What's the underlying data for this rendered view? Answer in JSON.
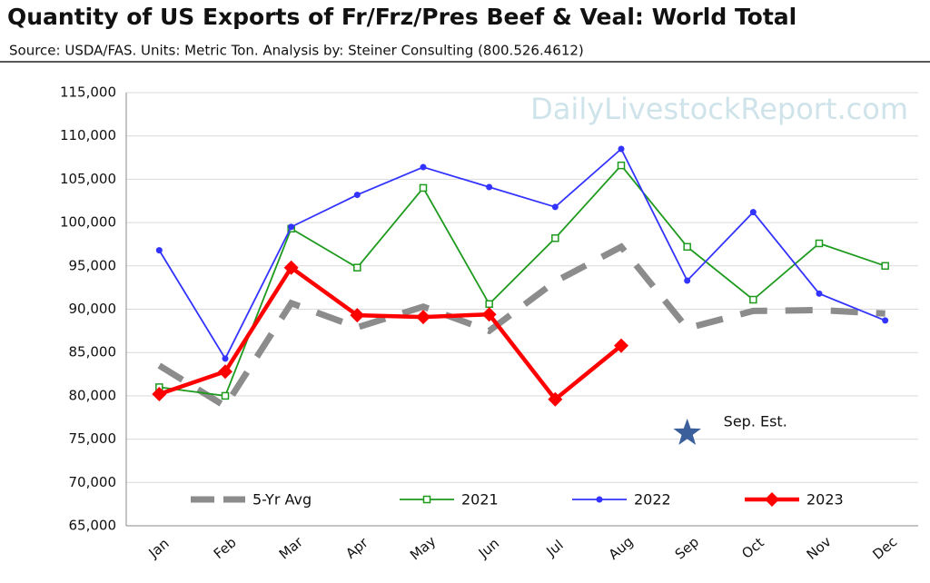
{
  "chart_data": {
    "type": "line",
    "title": "Quantity of US Exports of Fr/Frz/Pres Beef & Veal: World Total",
    "subtitle": "Source: USDA/FAS.  Units: Metric Ton.  Analysis by: Steiner Consulting (800.526.4612)",
    "watermark": "DailyLivestockReport.com",
    "categories": [
      "Jan",
      "Feb",
      "Mar",
      "Apr",
      "May",
      "Jun",
      "Jul",
      "Aug",
      "Sep",
      "Oct",
      "Nov",
      "Dec"
    ],
    "series": [
      {
        "name": "5-Yr Avg",
        "color": "#8c8c8c",
        "style": "dashed",
        "values": [
          83500,
          78800,
          90700,
          87900,
          90300,
          87500,
          93200,
          97200,
          87800,
          89800,
          89900,
          89500
        ]
      },
      {
        "name": "2021",
        "color": "#1e9a1e",
        "marker": "square",
        "values": [
          81000,
          80000,
          99300,
          94800,
          104000,
          90600,
          98200,
          106600,
          97200,
          91100,
          97600,
          95000
        ]
      },
      {
        "name": "2022",
        "color": "#3333ff",
        "marker": "circle",
        "values": [
          96800,
          84300,
          99500,
          103200,
          106400,
          104100,
          101800,
          108500,
          93300,
          101200,
          91800,
          88700
        ]
      },
      {
        "name": "2023",
        "color": "#ff0000",
        "marker": "diamond",
        "values": [
          80200,
          82800,
          94800,
          89300,
          89100,
          89400,
          79600,
          85800,
          null,
          null,
          null,
          null
        ]
      }
    ],
    "estimate": {
      "label": "Sep. Est.",
      "color": "#3a5f9a",
      "values": [
        null,
        null,
        null,
        null,
        null,
        null,
        null,
        null,
        75700,
        null,
        null,
        null
      ]
    },
    "ylim": [
      65000,
      115000
    ],
    "yticks": [
      {
        "value": 65000,
        "label": "65,000"
      },
      {
        "value": 70000,
        "label": "70,000"
      },
      {
        "value": 75000,
        "label": "75,000"
      },
      {
        "value": 80000,
        "label": "80,000"
      },
      {
        "value": 85000,
        "label": "85,000"
      },
      {
        "value": 90000,
        "label": "90,000"
      },
      {
        "value": 95000,
        "label": "95,000"
      },
      {
        "value": 100000,
        "label": "100,000"
      },
      {
        "value": 105000,
        "label": "105,000"
      },
      {
        "value": 110000,
        "label": "110,000"
      },
      {
        "value": 115000,
        "label": "115,000"
      }
    ],
    "grid": true,
    "legend": "bottom"
  }
}
